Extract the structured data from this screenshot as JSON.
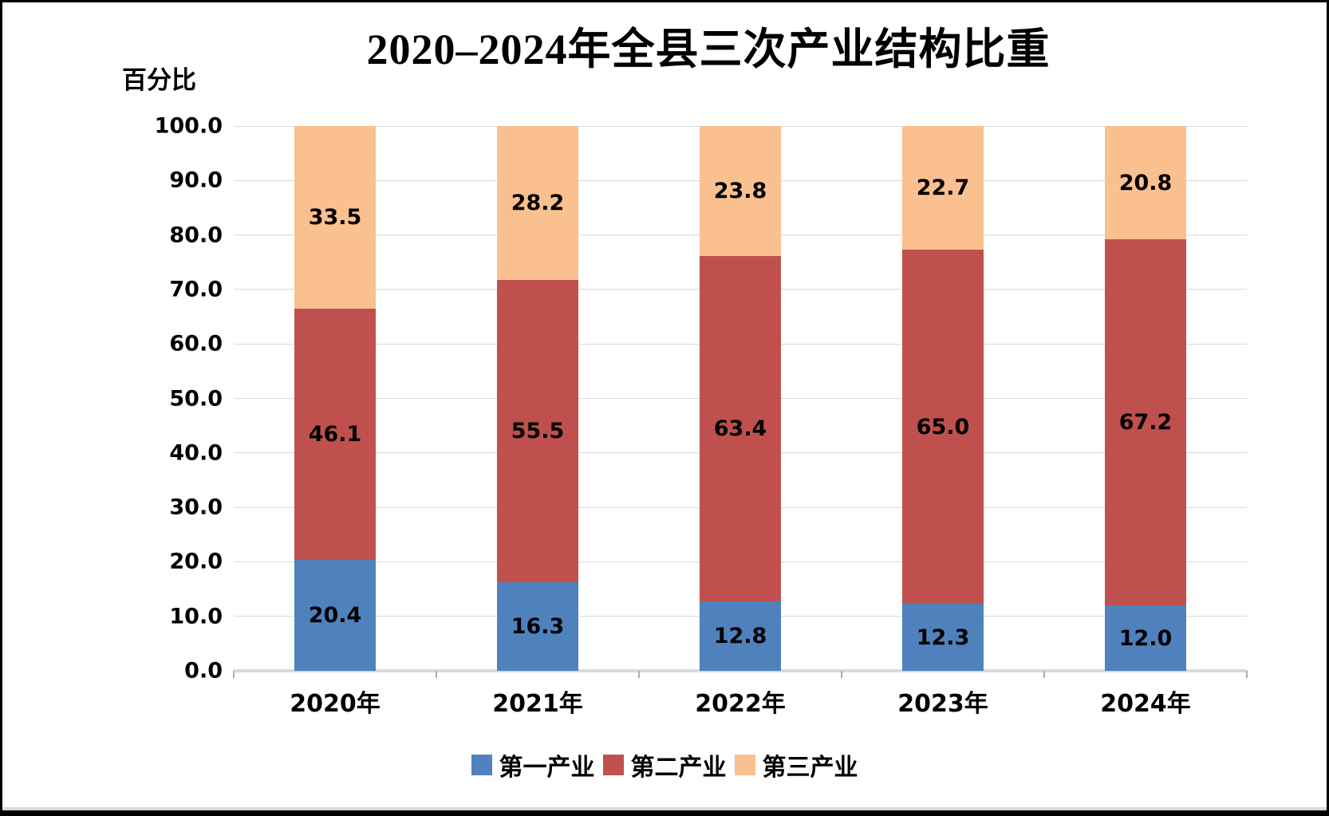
{
  "y_axis_label": "百分比",
  "chart_data": {
    "type": "bar",
    "stacked": true,
    "title": "2020–2024年全县三次产业结构比重",
    "xlabel": "",
    "ylabel": "百分比",
    "categories": [
      "2020年",
      "2021年",
      "2022年",
      "2023年",
      "2024年"
    ],
    "series": [
      {
        "name": "第一产业",
        "color": "#4F81BD",
        "values": [
          20.4,
          16.3,
          12.8,
          12.3,
          12.0
        ]
      },
      {
        "name": "第二产业",
        "color": "#C0504D",
        "values": [
          46.1,
          55.5,
          63.4,
          65.0,
          67.2
        ]
      },
      {
        "name": "第三产业",
        "color": "#FAC08F",
        "values": [
          33.5,
          28.2,
          23.8,
          22.7,
          20.8
        ]
      }
    ],
    "ylim": [
      0,
      100
    ],
    "y_ticks": [
      "0.0",
      "10.0",
      "20.0",
      "30.0",
      "40.0",
      "50.0",
      "60.0",
      "70.0",
      "80.0",
      "90.0",
      "100.0"
    ],
    "grid": true,
    "data_labels": true,
    "legend_position": "bottom"
  },
  "colors": {
    "gridline": "#d9d9d9",
    "axis_tick": "#adadad",
    "text": "#000000"
  }
}
